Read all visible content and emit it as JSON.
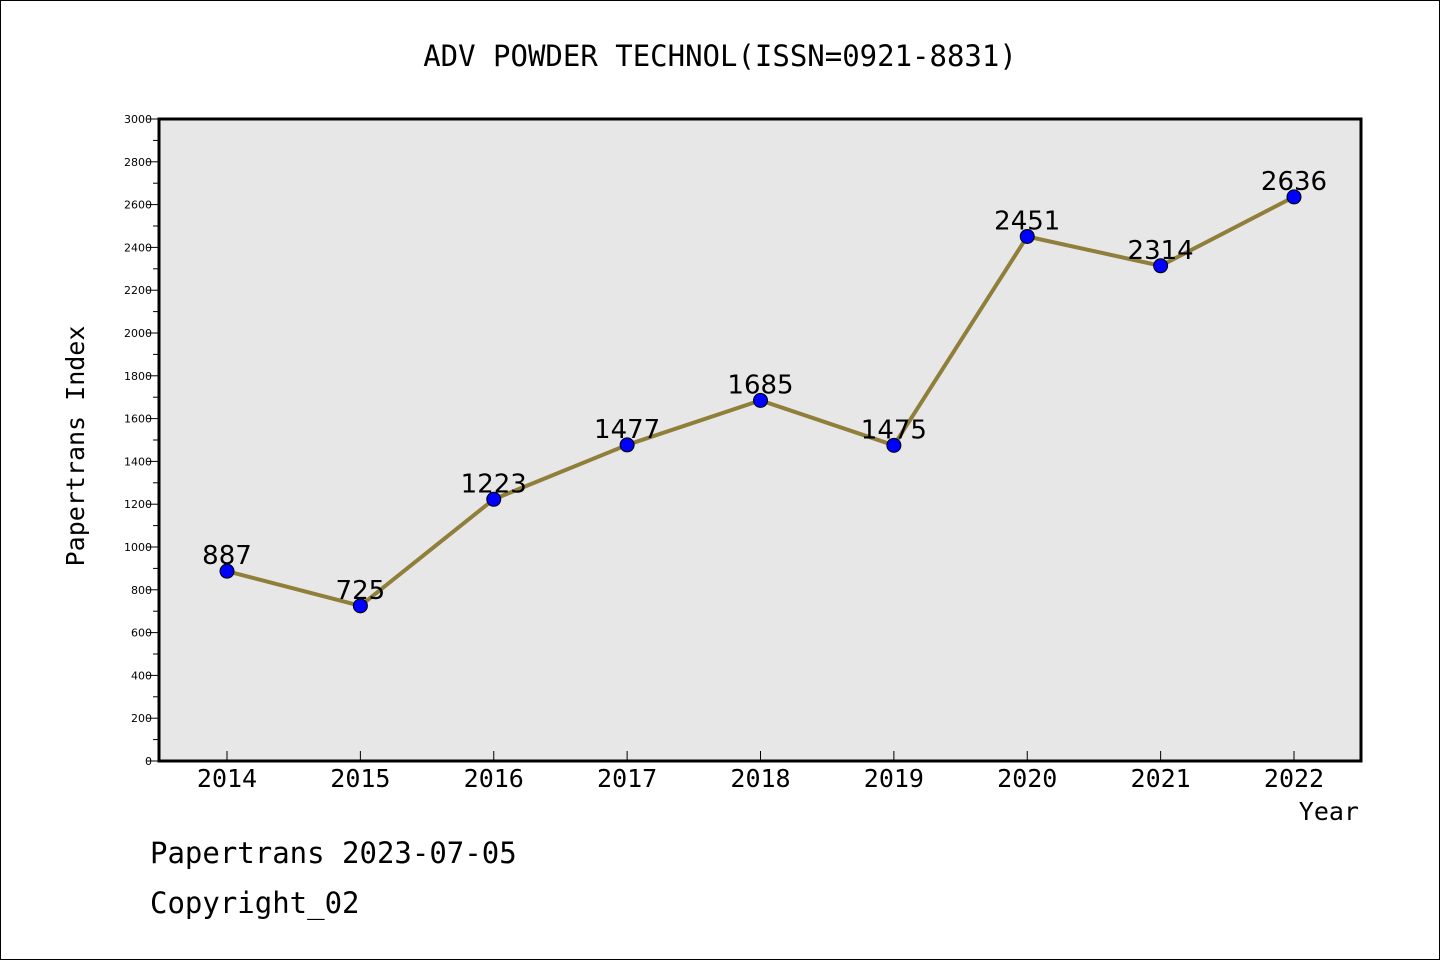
{
  "chart_data": {
    "type": "line",
    "title": "ADV POWDER TECHNOL(ISSN=0921-8831)",
    "xlabel": "Year",
    "ylabel": "Papertrans Index",
    "categories": [
      "2014",
      "2015",
      "2016",
      "2017",
      "2018",
      "2019",
      "2020",
      "2021",
      "2022"
    ],
    "values": [
      887,
      725,
      1223,
      1477,
      1685,
      1475,
      2451,
      2314,
      2636
    ],
    "data_labels": [
      "887",
      "725",
      "1223",
      "1477",
      "1685",
      "1475",
      "2451",
      "2314",
      "2636"
    ],
    "ylim": [
      0,
      3000
    ],
    "yticks": [
      "0",
      "200",
      "400",
      "600",
      "800",
      "1000",
      "1200",
      "1400",
      "1600",
      "1800",
      "2000",
      "2200",
      "2400",
      "2600",
      "2800",
      "3000"
    ],
    "grid": false,
    "plot_background": "#e7e7e7",
    "line_color": "#8f7f3a",
    "marker_color": "#0000ff"
  },
  "footer": {
    "line1": "Papertrans 2023-07-05",
    "line2": "Copyright_02"
  }
}
